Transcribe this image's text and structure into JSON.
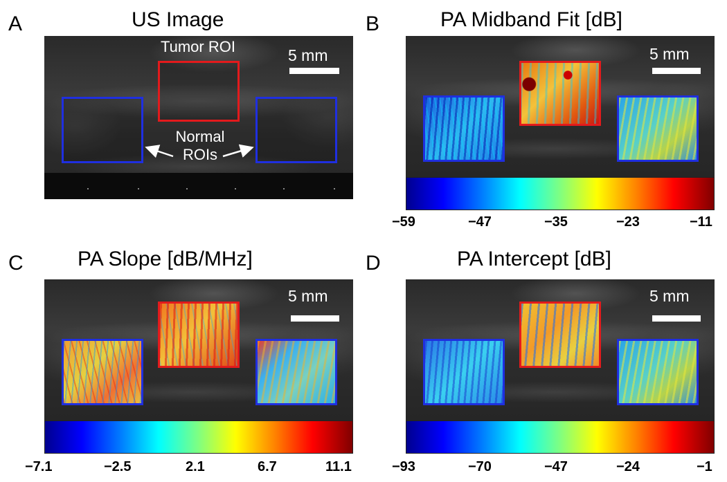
{
  "panels": {
    "a": {
      "letter": "A",
      "title": "US Image",
      "tumor_label": "Tumor ROI",
      "normal_label_line1": "Normal",
      "normal_label_line2": "ROIs",
      "scale": "5 mm"
    },
    "b": {
      "letter": "B",
      "title": "PA Midband Fit [dB]",
      "scale": "5 mm",
      "colorbar_ticks": [
        "−59",
        "−47",
        "−35",
        "−23",
        "−11"
      ]
    },
    "c": {
      "letter": "C",
      "title": "PA Slope [dB/MHz]",
      "scale": "5 mm",
      "colorbar_ticks": [
        "−7.1",
        "−2.5",
        "2.1",
        "6.7",
        "11.1"
      ]
    },
    "d": {
      "letter": "D",
      "title": "PA Intercept [dB]",
      "scale": "5 mm",
      "colorbar_ticks": [
        "−93",
        "−70",
        "−47",
        "−24",
        "−1"
      ]
    }
  },
  "colors": {
    "tumor_roi": "#e31a1c",
    "normal_roi": "#1f2fe0",
    "colormap": "jet"
  },
  "chart_data": {
    "type": "heatmap",
    "colorbars": [
      {
        "panel": "B",
        "min": -59,
        "max": -11,
        "ticks": [
          -59,
          -47,
          -35,
          -23,
          -11
        ]
      },
      {
        "panel": "C",
        "min": -7.1,
        "max": 11.1,
        "ticks": [
          -7.1,
          -2.5,
          2.1,
          6.7,
          11.1
        ]
      },
      {
        "panel": "D",
        "min": -93,
        "max": -1,
        "ticks": [
          -93,
          -70,
          -47,
          -24,
          -1
        ]
      }
    ]
  }
}
